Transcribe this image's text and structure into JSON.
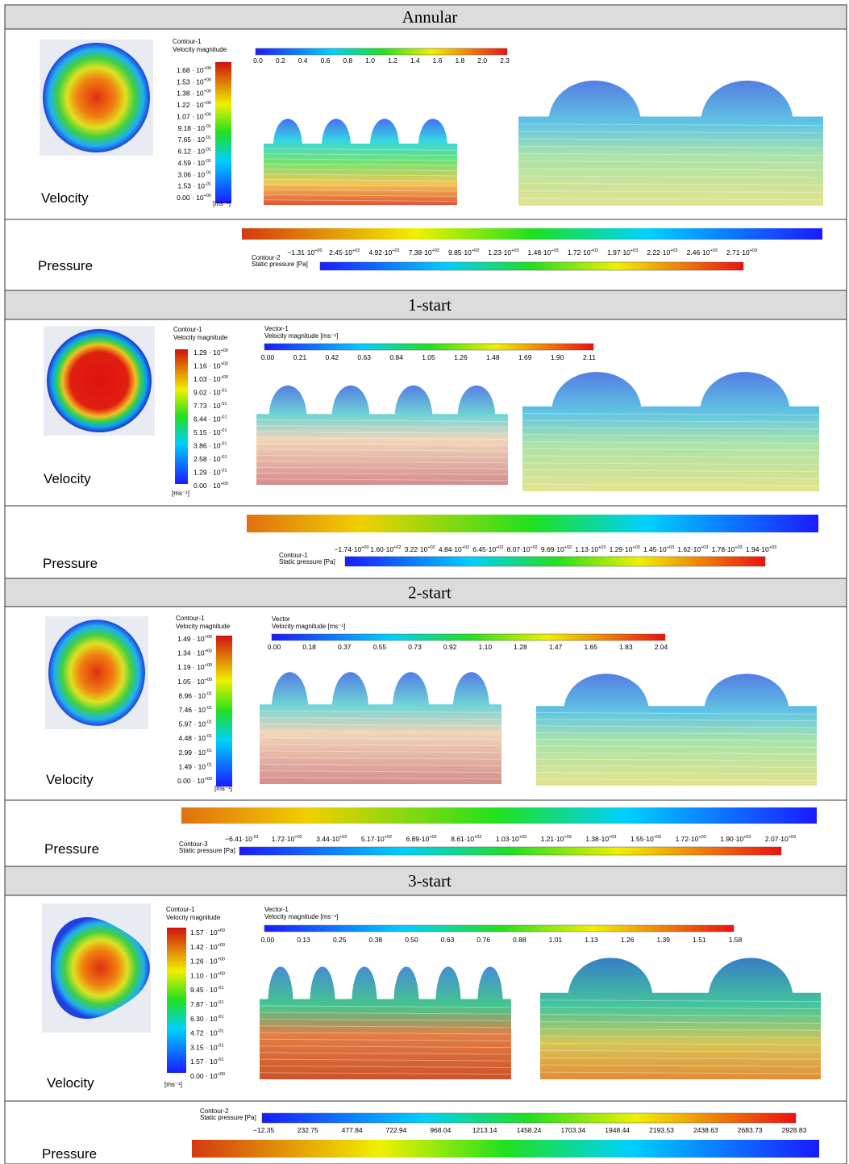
{
  "sections": [
    {
      "title": "Annular",
      "velocity_label": "Velocity",
      "pressure_label": "Pressure",
      "contour_legend": {
        "title": [
          "Contour-1",
          "Velocity magnitude"
        ],
        "unit": "[ms⁻¹]",
        "ticks": [
          {
            "text": "1.68 · 10",
            "sup": "+00"
          },
          {
            "text": "1.53 · 10",
            "sup": "+00"
          },
          {
            "text": "1.38 · 10",
            "sup": "+00"
          },
          {
            "text": "1.22 · 10",
            "sup": "+00"
          },
          {
            "text": "1.07 · 10",
            "sup": "+00"
          },
          {
            "text": "9.18 · 10",
            "sup": "-01"
          },
          {
            "text": "7.65 · 10",
            "sup": "-01"
          },
          {
            "text": "6.12 · 10",
            "sup": "-01"
          },
          {
            "text": "4.59 · 10",
            "sup": "-01"
          },
          {
            "text": "3.06 · 10",
            "sup": "-01"
          },
          {
            "text": "1.53 · 10",
            "sup": "-01"
          },
          {
            "text": "0.00 · 10",
            "sup": "+00"
          }
        ]
      },
      "vector_legend": {
        "title": [],
        "ticks": [
          "0.0",
          "0.2",
          "0.4",
          "0.6",
          "0.8",
          "1.0",
          "1.2",
          "1.4",
          "1.6",
          "1.8",
          "2.0",
          "2.3"
        ]
      },
      "pressure_legend": {
        "title": [
          "Contour-2",
          "Static pressure [Pa]"
        ],
        "ticks": [
          {
            "text": "−1.31·10",
            "sup": "+00"
          },
          {
            "text": "2.45·10",
            "sup": "+02"
          },
          {
            "text": "4.92·10",
            "sup": "+02"
          },
          {
            "text": "7.38·10",
            "sup": "+02"
          },
          {
            "text": "9.85·10",
            "sup": "+02"
          },
          {
            "text": "1.23·10",
            "sup": "+03"
          },
          {
            "text": "1.48·10",
            "sup": "+03"
          },
          {
            "text": "1.72·10",
            "sup": "+03"
          },
          {
            "text": "1.97·10",
            "sup": "+03"
          },
          {
            "text": "2.22·10",
            "sup": "+03"
          },
          {
            "text": "2.46·10",
            "sup": "+03"
          },
          {
            "text": "2.71·10",
            "sup": "+03"
          }
        ]
      }
    },
    {
      "title": "1-start",
      "velocity_label": "Velocity",
      "pressure_label": "Pressure",
      "contour_legend": {
        "title": [
          "Contour-1",
          "Velocity magnitude"
        ],
        "unit": "[ms⁻¹]",
        "ticks": [
          {
            "text": "1.29 · 10",
            "sup": "+00"
          },
          {
            "text": "1.16 · 10",
            "sup": "+00"
          },
          {
            "text": "1.03 · 10",
            "sup": "+00"
          },
          {
            "text": "9.02 · 10",
            "sup": "-01"
          },
          {
            "text": "7.73 · 10",
            "sup": "-01"
          },
          {
            "text": "6.44 · 10",
            "sup": "-01"
          },
          {
            "text": "5.15 · 10",
            "sup": "-01"
          },
          {
            "text": "3.86 · 10",
            "sup": "-01"
          },
          {
            "text": "2.58 · 10",
            "sup": "-01"
          },
          {
            "text": "1.29 · 10",
            "sup": "-01"
          },
          {
            "text": "0.00 · 10",
            "sup": "+00"
          }
        ]
      },
      "vector_legend": {
        "title": [
          "Vector-1",
          "Velocity magnitude [ms⁻¹]"
        ],
        "ticks": [
          "0.00",
          "0.21",
          "0.42",
          "0.63",
          "0.84",
          "1.05",
          "1.26",
          "1.48",
          "1.69",
          "1.90",
          "2.11"
        ]
      },
      "pressure_legend": {
        "title": [
          "Contour-1",
          "Static pressure [Pa]"
        ],
        "ticks": [
          {
            "text": "−1.74·10",
            "sup": "+00"
          },
          {
            "text": "1.60·10",
            "sup": "+02"
          },
          {
            "text": "3.22·10",
            "sup": "+02"
          },
          {
            "text": "4.84·10",
            "sup": "+02"
          },
          {
            "text": "6.45·10",
            "sup": "+02"
          },
          {
            "text": "8.07·10",
            "sup": "+02"
          },
          {
            "text": "9.69·10",
            "sup": "+02"
          },
          {
            "text": "1.13·10",
            "sup": "+03"
          },
          {
            "text": "1.29·10",
            "sup": "+03"
          },
          {
            "text": "1.45·10",
            "sup": "+03"
          },
          {
            "text": "1.62·10",
            "sup": "+03"
          },
          {
            "text": "1.78·10",
            "sup": "+03"
          },
          {
            "text": "1.94·10",
            "sup": "+03"
          }
        ]
      }
    },
    {
      "title": "2-start",
      "velocity_label": "Velocity",
      "pressure_label": "Pressure",
      "contour_legend": {
        "title": [
          "Contour-1",
          "Velocity magnitude"
        ],
        "unit": "[ms⁻¹]",
        "ticks": [
          {
            "text": "1.49 · 10",
            "sup": "+00"
          },
          {
            "text": "1.34 · 10",
            "sup": "+00"
          },
          {
            "text": "1.19 · 10",
            "sup": "+00"
          },
          {
            "text": "1.05 · 10",
            "sup": "+00"
          },
          {
            "text": "8.96 · 10",
            "sup": "-01"
          },
          {
            "text": "7.46 · 10",
            "sup": "-01"
          },
          {
            "text": "5.97 · 10",
            "sup": "-01"
          },
          {
            "text": "4.48 · 10",
            "sup": "-01"
          },
          {
            "text": "2.99 · 10",
            "sup": "-01"
          },
          {
            "text": "1.49 · 10",
            "sup": "-01"
          },
          {
            "text": "0.00 · 10",
            "sup": "+00"
          }
        ]
      },
      "vector_legend": {
        "title": [
          "Vector",
          "Velocity magnitude [ms⁻¹]"
        ],
        "ticks": [
          "0.00",
          "0.18",
          "0.37",
          "0.55",
          "0.73",
          "0.92",
          "1.10",
          "1.28",
          "1.47",
          "1.65",
          "1.83",
          "2.04"
        ]
      },
      "pressure_legend": {
        "title": [
          "Contour-3",
          "Static pressure [Pa]"
        ],
        "ticks": [
          {
            "text": "−6.41·10",
            "sup": "-01"
          },
          {
            "text": "1.72·10",
            "sup": "+02"
          },
          {
            "text": "3.44·10",
            "sup": "+02"
          },
          {
            "text": "5.17·10",
            "sup": "+02"
          },
          {
            "text": "6.89·10",
            "sup": "+02"
          },
          {
            "text": "8.61·10",
            "sup": "+02"
          },
          {
            "text": "1.03·10",
            "sup": "+03"
          },
          {
            "text": "1.21·10",
            "sup": "+03"
          },
          {
            "text": "1.38·10",
            "sup": "+03"
          },
          {
            "text": "1.55·10",
            "sup": "+03"
          },
          {
            "text": "1.72·10",
            "sup": "+03"
          },
          {
            "text": "1.90·10",
            "sup": "+03"
          },
          {
            "text": "2.07·10",
            "sup": "+03"
          }
        ]
      }
    },
    {
      "title": "3-start",
      "velocity_label": "Velocity",
      "pressure_label": "Pressure",
      "contour_legend": {
        "title": [
          "Contour-1",
          "Velocity magnitude"
        ],
        "unit": "[ms⁻¹]",
        "ticks": [
          {
            "text": "1.57 · 10",
            "sup": "+00"
          },
          {
            "text": "1.42 · 10",
            "sup": "+00"
          },
          {
            "text": "1.26 · 10",
            "sup": "+00"
          },
          {
            "text": "1.10 · 10",
            "sup": "+00"
          },
          {
            "text": "9.45 · 10",
            "sup": "-01"
          },
          {
            "text": "7.87 · 10",
            "sup": "-01"
          },
          {
            "text": "6.30 · 10",
            "sup": "-01"
          },
          {
            "text": "4.72 · 10",
            "sup": "-01"
          },
          {
            "text": "3.15 · 10",
            "sup": "-01"
          },
          {
            "text": "1.57 · 10",
            "sup": "-01"
          },
          {
            "text": "0.00 · 10",
            "sup": "+00"
          }
        ]
      },
      "vector_legend": {
        "title": [
          "Vector-1",
          "Velocity magnitude [ms⁻¹]"
        ],
        "ticks": [
          "0.00",
          "0.13",
          "0.25",
          "0.38",
          "0.50",
          "0.63",
          "0.76",
          "0.88",
          "1.01",
          "1.13",
          "1.26",
          "1.39",
          "1.51",
          "1.58"
        ]
      },
      "pressure_legend": {
        "title": [
          "Contour-2",
          "Static pressure [Pa]"
        ],
        "ticks": [
          "−12.35",
          "232.75",
          "477.84",
          "722.94",
          "968.04",
          "1213.14",
          "1458.24",
          "1703.34",
          "1948.44",
          "2193.53",
          "2438.63",
          "2683.73",
          "2928.83"
        ]
      }
    }
  ]
}
